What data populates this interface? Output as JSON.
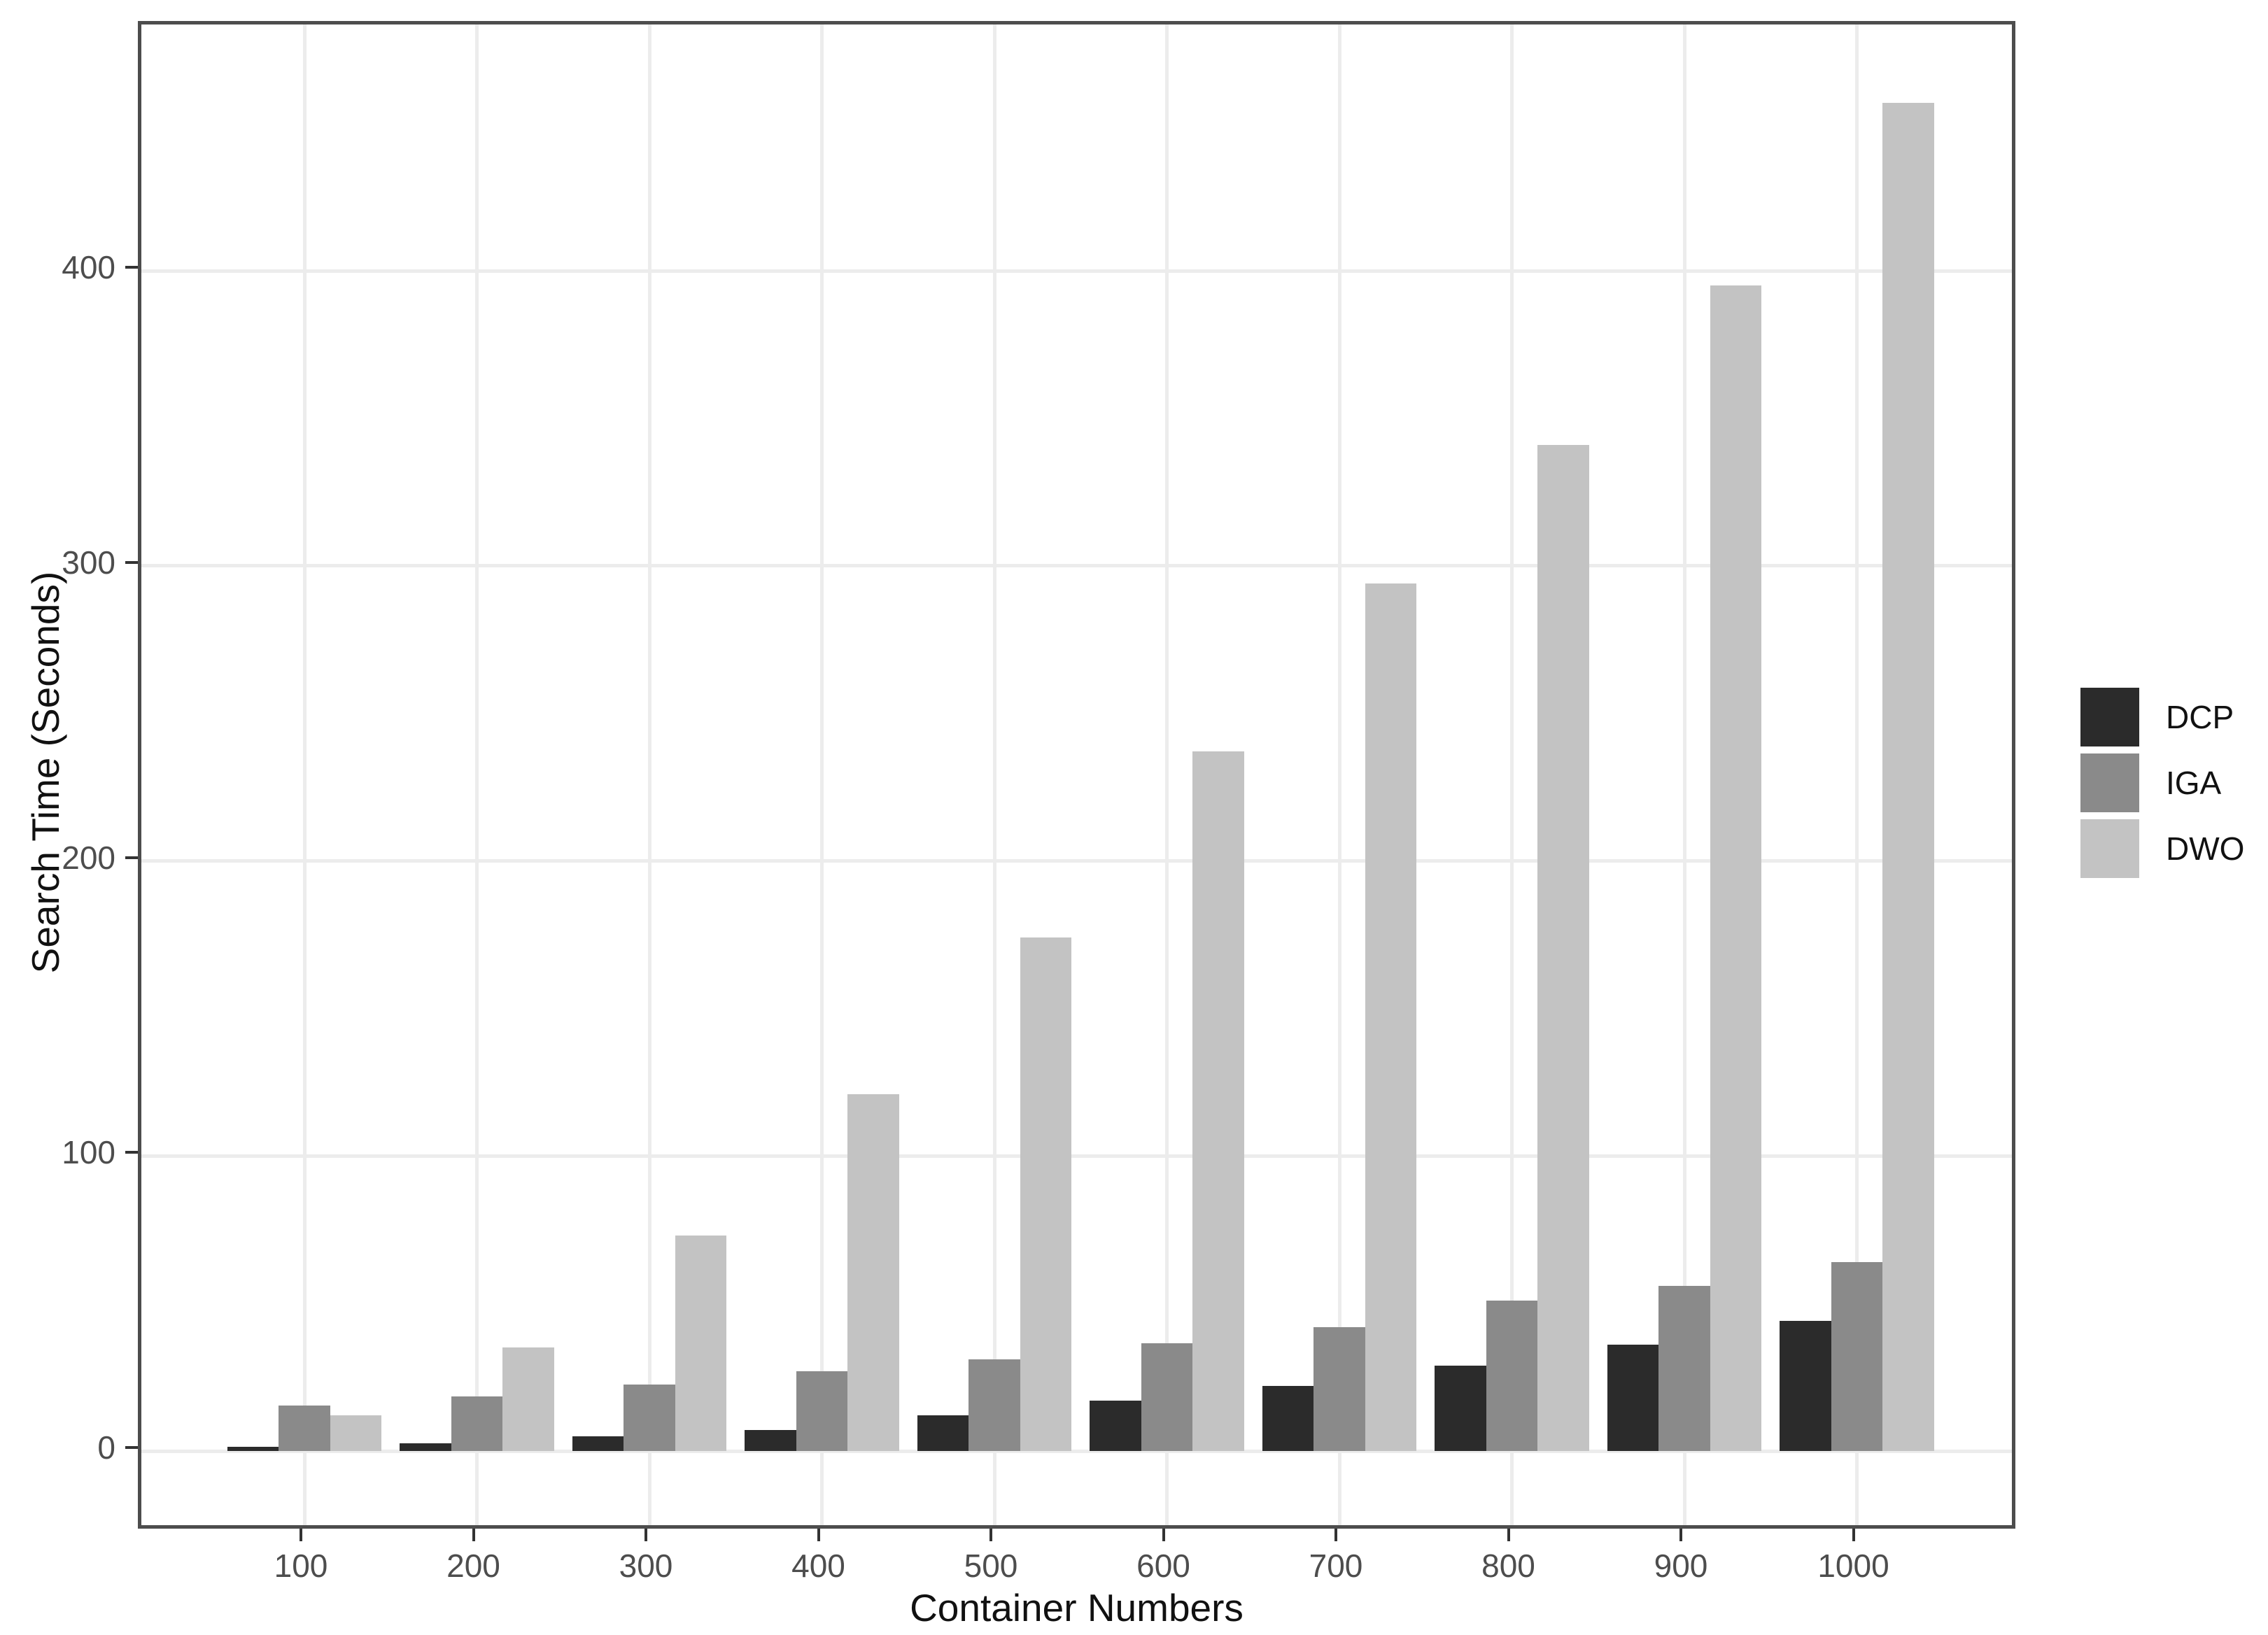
{
  "chart_data": {
    "type": "bar",
    "bar_mode": "dodged",
    "title": "",
    "xlabel": "Container Numbers",
    "ylabel": "Search Time (Seconds)",
    "categories": [
      100,
      200,
      300,
      400,
      500,
      600,
      700,
      800,
      900,
      1000
    ],
    "series": [
      {
        "name": "DCP",
        "color": "#2B2B2B",
        "values": [
          1.5,
          2.5,
          5,
          7,
          12,
          17,
          22,
          29,
          36,
          44
        ]
      },
      {
        "name": "IGA",
        "color": "#8A8A8A",
        "values": [
          15.5,
          18.5,
          22.5,
          27,
          31,
          36.5,
          42,
          51,
          56,
          64
        ]
      },
      {
        "name": "DWO",
        "color": "#C3C3C3",
        "values": [
          12,
          35,
          73,
          121,
          174,
          237,
          294,
          341,
          395,
          457
        ]
      }
    ],
    "y_ticks": [
      0,
      100,
      200,
      300,
      400
    ],
    "ylim": [
      -27,
      483
    ],
    "grid": "major-only",
    "legend_position": "right",
    "legend_items": [
      "DCP",
      "IGA",
      "DWO"
    ]
  },
  "colors": {
    "background": "#FFFFFF",
    "panel_border": "#4D4D4D",
    "gridline": "#ECECEC",
    "tick_mark": "#333333",
    "tick_label": "#4D4D4D",
    "axis_title": "#111111"
  }
}
